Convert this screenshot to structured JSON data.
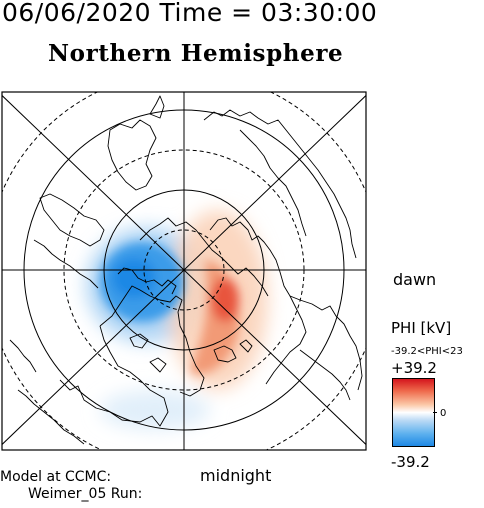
{
  "header": {
    "datetime": "06/06/2020 Time = 03:30:00"
  },
  "map": {
    "title": "Northern Hemisphere",
    "labels": {
      "dawn": "dawn",
      "midnight": "midnight"
    },
    "projection": "polar stereographic",
    "colors": {
      "positive": "#d4151d",
      "negative": "#1e88e5",
      "neutral": "#ffffff"
    }
  },
  "colorbar": {
    "title": "PHI [kV]",
    "range_text": "-39.2<PHI<23",
    "max_label": "+39.2",
    "min_label": "-39.2",
    "zero_label": "0"
  },
  "credits": {
    "line1": "Model at CCMC:",
    "line2": "Weimer_05 Run:"
  }
}
